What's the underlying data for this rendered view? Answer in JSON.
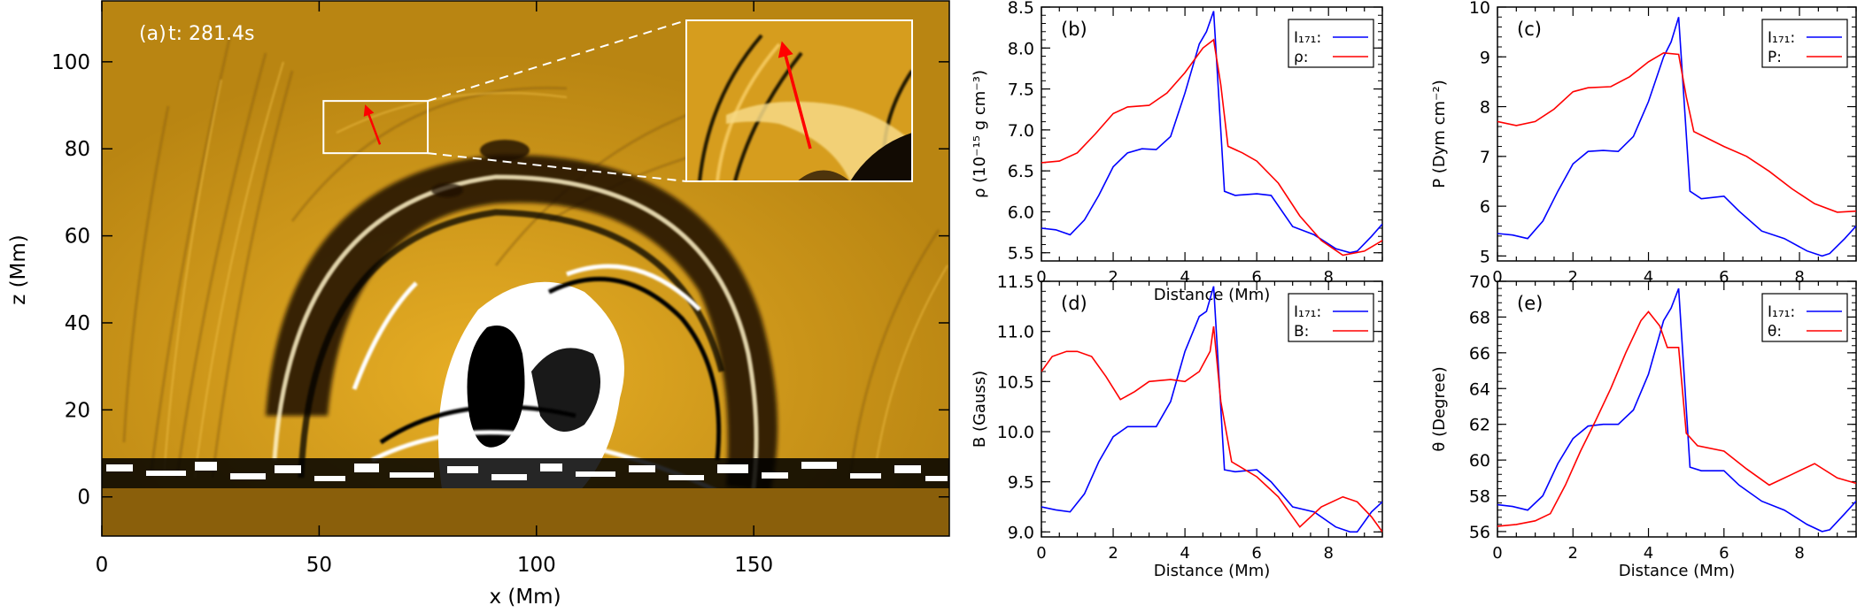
{
  "chart_data": [
    {
      "panel": "a",
      "type": "image",
      "label": "(a)",
      "time_label": "t: 281.4s",
      "xlabel": "x (Mm)",
      "ylabel": "z (Mm)",
      "xlim": [
        0,
        195
      ],
      "ylim": [
        -9,
        114
      ],
      "xticks": [
        "0",
        "50",
        "100",
        "150"
      ],
      "yticks": [
        "0",
        "20",
        "40",
        "60",
        "80",
        "100"
      ],
      "colormap": [
        "#000000",
        "#8c5e0a",
        "#e0a820",
        "#ffffff"
      ],
      "zoom_box_mm": {
        "x": [
          51,
          75
        ],
        "z": [
          79,
          91
        ]
      },
      "arrow_mm": {
        "x": [
          64,
          61
        ],
        "z": [
          81,
          89
        ]
      }
    },
    {
      "panel": "b",
      "type": "line",
      "label": "(b)",
      "xlabel": "Distance (Mm)",
      "ylabel": "ρ (10⁻¹⁵ g cm⁻³)",
      "xlim": [
        0,
        9.5
      ],
      "ylim": [
        5.4,
        8.5
      ],
      "xticks": [
        "0",
        "2",
        "4",
        "6",
        "8"
      ],
      "yticks": [
        "5.5",
        "6.0",
        "6.5",
        "7.0",
        "7.5",
        "8.0",
        "8.5"
      ],
      "legend": [
        "I₁₇₁:",
        "ρ:"
      ],
      "series": [
        {
          "name": "I171",
          "color": "#0000ff",
          "x": [
            0,
            0.4,
            0.8,
            1.2,
            1.6,
            2.0,
            2.4,
            2.8,
            3.2,
            3.6,
            4.0,
            4.4,
            4.6,
            4.8,
            5.1,
            5.4,
            6.0,
            6.4,
            7.0,
            7.6,
            8.2,
            8.6,
            8.8,
            9.2,
            9.5
          ],
          "y": [
            5.8,
            5.78,
            5.72,
            5.9,
            6.2,
            6.55,
            6.72,
            6.77,
            6.76,
            6.92,
            7.45,
            8.05,
            8.2,
            8.45,
            6.25,
            6.2,
            6.22,
            6.2,
            5.82,
            5.72,
            5.55,
            5.5,
            5.52,
            5.7,
            5.85
          ]
        },
        {
          "name": "ρ",
          "color": "#ff0000",
          "x": [
            0,
            0.5,
            1.0,
            1.5,
            2.0,
            2.4,
            3.0,
            3.5,
            4.0,
            4.5,
            4.8,
            5.0,
            5.2,
            5.6,
            6.0,
            6.6,
            7.2,
            7.8,
            8.4,
            9.0,
            9.5
          ],
          "y": [
            6.6,
            6.62,
            6.72,
            6.95,
            7.2,
            7.28,
            7.3,
            7.45,
            7.7,
            8.0,
            8.1,
            7.55,
            6.8,
            6.72,
            6.62,
            6.35,
            5.95,
            5.65,
            5.47,
            5.52,
            5.65
          ]
        }
      ]
    },
    {
      "panel": "c",
      "type": "line",
      "label": "(c)",
      "xlabel": "",
      "ylabel": "P (Dym cm⁻²)",
      "xlim": [
        0,
        9.5
      ],
      "ylim": [
        4.9,
        10.0
      ],
      "xticks": [
        "0",
        "2",
        "4",
        "6",
        "8"
      ],
      "yticks": [
        "5",
        "6",
        "7",
        "8",
        "9",
        "10"
      ],
      "legend": [
        "I₁₇₁:",
        "P:"
      ],
      "series": [
        {
          "name": "I171",
          "color": "#0000ff",
          "x": [
            0,
            0.4,
            0.8,
            1.2,
            1.6,
            2.0,
            2.4,
            2.8,
            3.2,
            3.6,
            4.0,
            4.4,
            4.6,
            4.8,
            5.1,
            5.4,
            6.0,
            6.4,
            7.0,
            7.6,
            8.2,
            8.6,
            8.8,
            9.2,
            9.5
          ],
          "y": [
            5.45,
            5.42,
            5.35,
            5.7,
            6.3,
            6.85,
            7.1,
            7.12,
            7.1,
            7.4,
            8.1,
            9.0,
            9.3,
            9.8,
            6.3,
            6.15,
            6.2,
            5.9,
            5.5,
            5.35,
            5.1,
            5.0,
            5.05,
            5.35,
            5.6
          ]
        },
        {
          "name": "P",
          "color": "#ff0000",
          "x": [
            0,
            0.5,
            1.0,
            1.5,
            2.0,
            2.4,
            3.0,
            3.5,
            4.0,
            4.4,
            4.8,
            5.0,
            5.2,
            5.6,
            6.0,
            6.6,
            7.2,
            7.8,
            8.4,
            9.0,
            9.5
          ],
          "y": [
            7.7,
            7.62,
            7.7,
            7.95,
            8.3,
            8.38,
            8.4,
            8.6,
            8.9,
            9.08,
            9.05,
            8.2,
            7.5,
            7.35,
            7.2,
            7.0,
            6.7,
            6.35,
            6.05,
            5.88,
            5.9
          ]
        }
      ]
    },
    {
      "panel": "d",
      "type": "line",
      "label": "(d)",
      "xlabel": "Distance (Mm)",
      "ylabel": "B (Gauss)",
      "xlim": [
        0,
        9.5
      ],
      "ylim": [
        8.95,
        11.5
      ],
      "xticks": [
        "0",
        "2",
        "4",
        "6",
        "8"
      ],
      "yticks": [
        "9.0",
        "9.5",
        "10.0",
        "10.5",
        "11.0",
        "11.5"
      ],
      "legend": [
        "I₁₇₁:",
        "B:"
      ],
      "series": [
        {
          "name": "I171",
          "color": "#0000ff",
          "x": [
            0,
            0.4,
            0.8,
            1.2,
            1.6,
            2.0,
            2.4,
            2.8,
            3.2,
            3.6,
            4.0,
            4.4,
            4.6,
            4.8,
            5.1,
            5.4,
            6.0,
            6.4,
            7.0,
            7.6,
            8.2,
            8.6,
            8.8,
            9.2,
            9.5
          ],
          "y": [
            9.25,
            9.22,
            9.2,
            9.38,
            9.7,
            9.95,
            10.05,
            10.05,
            10.05,
            10.3,
            10.8,
            11.15,
            11.2,
            11.45,
            9.62,
            9.6,
            9.62,
            9.5,
            9.25,
            9.2,
            9.05,
            9.0,
            9.0,
            9.2,
            9.3
          ]
        },
        {
          "name": "B",
          "color": "#ff0000",
          "x": [
            0,
            0.3,
            0.7,
            1.0,
            1.4,
            1.8,
            2.2,
            2.6,
            3.0,
            3.6,
            4.0,
            4.4,
            4.7,
            4.8,
            5.0,
            5.3,
            6.0,
            6.6,
            7.2,
            7.8,
            8.4,
            8.8,
            9.2,
            9.5
          ],
          "y": [
            10.6,
            10.75,
            10.8,
            10.8,
            10.75,
            10.55,
            10.32,
            10.4,
            10.5,
            10.52,
            10.5,
            10.6,
            10.8,
            11.05,
            10.3,
            9.7,
            9.55,
            9.35,
            9.05,
            9.25,
            9.35,
            9.3,
            9.15,
            9.0
          ]
        }
      ]
    },
    {
      "panel": "e",
      "type": "line",
      "label": "(e)",
      "xlabel": "Distance (Mm)",
      "ylabel": "θ (Degree)",
      "xlim": [
        0,
        9.5
      ],
      "ylim": [
        55.7,
        70.0
      ],
      "xticks": [
        "0",
        "2",
        "4",
        "6",
        "8"
      ],
      "yticks": [
        "56",
        "58",
        "60",
        "62",
        "64",
        "66",
        "68",
        "70"
      ],
      "legend": [
        "I₁₇₁:",
        "θ:"
      ],
      "series": [
        {
          "name": "I171",
          "color": "#0000ff",
          "x": [
            0,
            0.4,
            0.8,
            1.2,
            1.6,
            2.0,
            2.4,
            2.8,
            3.2,
            3.6,
            4.0,
            4.4,
            4.6,
            4.8,
            5.1,
            5.4,
            6.0,
            6.4,
            7.0,
            7.6,
            8.2,
            8.6,
            8.8,
            9.2,
            9.5
          ],
          "y": [
            57.5,
            57.4,
            57.2,
            58.0,
            59.8,
            61.2,
            61.9,
            62.0,
            62.0,
            62.8,
            64.8,
            67.8,
            68.5,
            69.6,
            59.6,
            59.4,
            59.4,
            58.6,
            57.7,
            57.2,
            56.4,
            56.0,
            56.1,
            57.0,
            57.7
          ]
        },
        {
          "name": "θ",
          "color": "#ff0000",
          "x": [
            0,
            0.5,
            1.0,
            1.4,
            1.8,
            2.2,
            2.6,
            3.0,
            3.4,
            3.8,
            4.0,
            4.3,
            4.5,
            4.8,
            5.0,
            5.3,
            6.0,
            6.6,
            7.2,
            7.8,
            8.4,
            9.0,
            9.5
          ],
          "y": [
            56.3,
            56.4,
            56.6,
            57.0,
            58.6,
            60.5,
            62.2,
            64.0,
            66.0,
            67.8,
            68.3,
            67.5,
            66.3,
            66.3,
            61.5,
            60.8,
            60.5,
            59.5,
            58.6,
            59.2,
            59.8,
            59.0,
            58.7
          ]
        }
      ]
    }
  ]
}
